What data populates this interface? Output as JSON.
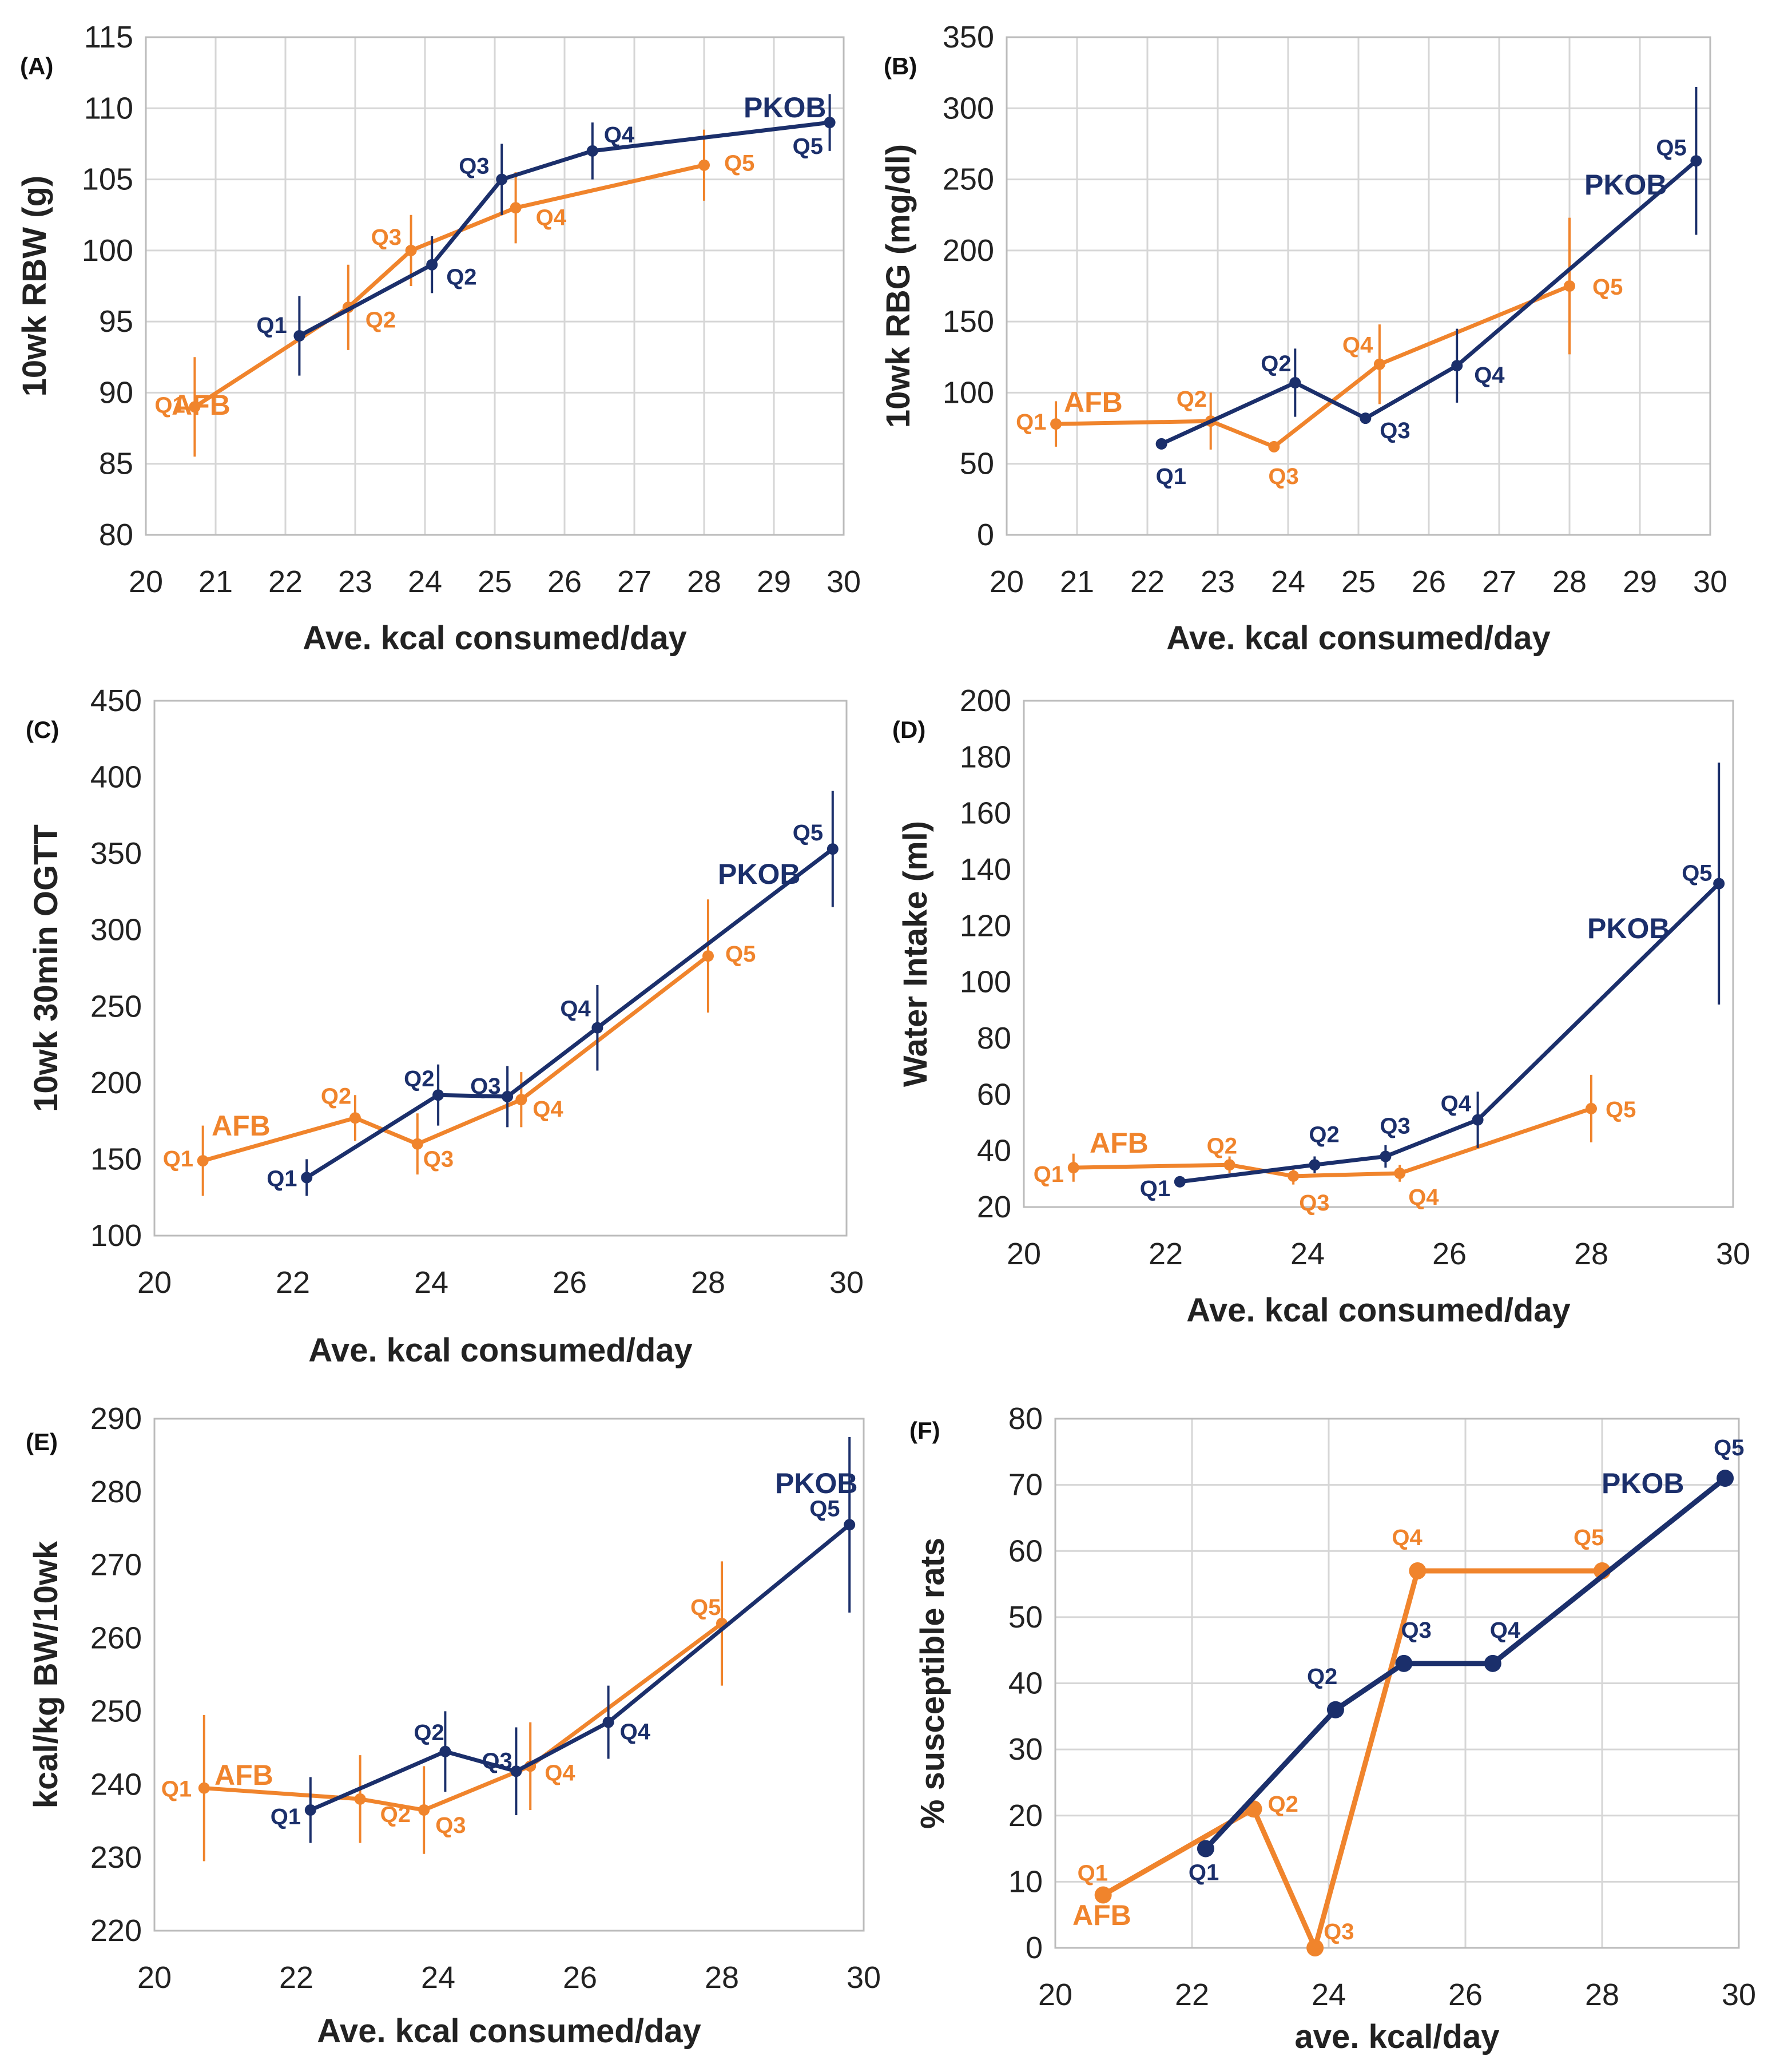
{
  "colors": {
    "afb": "#F0842C",
    "pkob": "#1B2F6B",
    "grid": "#D6D6D6",
    "axis": "#BBBBBB"
  },
  "chart_data": [
    {
      "id": "A",
      "type": "line",
      "panel_label": "(A)",
      "ylabel": "10wk  RBW (g)",
      "xlabel": "Ave. kcal consumed/day",
      "xlim": [
        20,
        30
      ],
      "ylim": [
        80,
        115
      ],
      "xticks": [
        "20",
        "21",
        "22",
        "23",
        "24",
        "25",
        "26",
        "27",
        "28",
        "29",
        "30"
      ],
      "yticks": [
        "80",
        "85",
        "90",
        "95",
        "100",
        "105",
        "110",
        "115"
      ],
      "grid": true,
      "series": [
        {
          "name": "AFB",
          "color": "afb",
          "x": [
            20.7,
            22.9,
            23.8,
            25.3,
            28.0
          ],
          "y": [
            89,
            96,
            100,
            103,
            106
          ],
          "err": [
            3.5,
            3.0,
            2.5,
            2.5,
            2.5
          ],
          "labels": [
            "Q1",
            "Q2",
            "Q3",
            "Q4",
            "Q5"
          ]
        },
        {
          "name": "PKOB",
          "color": "pkob",
          "x": [
            22.2,
            24.1,
            25.1,
            26.4,
            29.8
          ],
          "y": [
            94,
            99,
            105,
            107,
            109
          ],
          "err": [
            2.8,
            2.0,
            2.5,
            2.0,
            2.0
          ],
          "labels": [
            "Q1",
            "Q2",
            "Q3",
            "Q4",
            "Q5"
          ]
        }
      ]
    },
    {
      "id": "B",
      "type": "line",
      "panel_label": "(B)",
      "ylabel": "10wk RBG (mg/dl)",
      "xlabel": "Ave. kcal consumed/day",
      "xlim": [
        20,
        30
      ],
      "ylim": [
        0,
        350
      ],
      "xticks": [
        "20",
        "21",
        "22",
        "23",
        "24",
        "25",
        "26",
        "27",
        "28",
        "29",
        "30"
      ],
      "yticks": [
        "0",
        "50",
        "100",
        "150",
        "200",
        "250",
        "300",
        "350"
      ],
      "grid": true,
      "series": [
        {
          "name": "AFB",
          "color": "afb",
          "x": [
            20.7,
            22.9,
            23.8,
            25.3,
            28.0
          ],
          "y": [
            78,
            80,
            62,
            120,
            175
          ],
          "err": [
            16,
            20,
            0,
            28,
            48
          ],
          "labels": [
            "Q1",
            "Q2",
            "Q3",
            "Q4",
            "Q5"
          ]
        },
        {
          "name": "PKOB",
          "color": "pkob",
          "x": [
            22.2,
            24.1,
            25.1,
            26.4,
            29.8
          ],
          "y": [
            64,
            107,
            82,
            119,
            263
          ],
          "err": [
            0,
            24,
            0,
            26,
            52
          ],
          "labels": [
            "Q1",
            "Q2",
            "Q3",
            "Q4",
            "Q5"
          ]
        }
      ]
    },
    {
      "id": "C",
      "type": "line",
      "panel_label": "(C)",
      "ylabel": "10wk 30min OGTT",
      "xlabel": "Ave. kcal consumed/day",
      "xlim": [
        20,
        30
      ],
      "ylim": [
        100,
        450
      ],
      "xticks": [
        "20",
        "22",
        "24",
        "26",
        "28",
        "30"
      ],
      "yticks": [
        "100",
        "150",
        "200",
        "250",
        "300",
        "350",
        "400",
        "450"
      ],
      "grid": false,
      "series": [
        {
          "name": "AFB",
          "color": "afb",
          "x": [
            20.7,
            22.9,
            23.8,
            25.3,
            28.0
          ],
          "y": [
            149,
            177,
            160,
            189,
            283
          ],
          "err": [
            23,
            15,
            20,
            18,
            37
          ],
          "labels": [
            "Q1",
            "Q2",
            "Q3",
            "Q4",
            "Q5"
          ]
        },
        {
          "name": "PKOB",
          "color": "pkob",
          "x": [
            22.2,
            24.1,
            25.1,
            26.4,
            29.8
          ],
          "y": [
            138,
            192,
            191,
            236,
            353
          ],
          "err": [
            12,
            20,
            20,
            28,
            38
          ],
          "labels": [
            "Q1",
            "Q2",
            "Q3",
            "Q4",
            "Q5"
          ]
        }
      ]
    },
    {
      "id": "D",
      "type": "line",
      "panel_label": "(D)",
      "ylabel": "Water Intake (ml)",
      "xlabel": "Ave. kcal consumed/day",
      "xlim": [
        20,
        30
      ],
      "ylim": [
        20,
        200
      ],
      "xticks": [
        "20",
        "22",
        "24",
        "26",
        "28",
        "30"
      ],
      "yticks": [
        "20",
        "40",
        "60",
        "80",
        "100",
        "120",
        "140",
        "160",
        "180",
        "200"
      ],
      "grid": false,
      "series": [
        {
          "name": "AFB",
          "color": "afb",
          "x": [
            20.7,
            22.9,
            23.8,
            25.3,
            28.0
          ],
          "y": [
            34,
            35,
            31,
            32,
            55
          ],
          "err": [
            5,
            3,
            3,
            3,
            12
          ],
          "labels": [
            "Q1",
            "Q2",
            "Q3",
            "Q4",
            "Q5"
          ]
        },
        {
          "name": "PKOB",
          "color": "pkob",
          "x": [
            22.2,
            24.1,
            25.1,
            26.4,
            29.8
          ],
          "y": [
            29,
            35,
            38,
            51,
            135
          ],
          "err": [
            2,
            3,
            4,
            10,
            43
          ],
          "labels": [
            "Q1",
            "Q2",
            "Q3",
            "Q4",
            "Q5"
          ]
        }
      ]
    },
    {
      "id": "E",
      "type": "line",
      "panel_label": "(E)",
      "ylabel": "kcal/kg BW/10wk",
      "xlabel": "Ave. kcal consumed/day",
      "xlim": [
        20,
        30
      ],
      "ylim": [
        220,
        290
      ],
      "xticks": [
        "20",
        "22",
        "24",
        "26",
        "28",
        "30"
      ],
      "yticks": [
        "220",
        "230",
        "240",
        "250",
        "260",
        "270",
        "280",
        "290"
      ],
      "grid": false,
      "series": [
        {
          "name": "AFB",
          "color": "afb",
          "x": [
            20.7,
            22.9,
            23.8,
            25.3,
            28.0
          ],
          "y": [
            239.5,
            238,
            236.5,
            242.5,
            262
          ],
          "err": [
            10,
            6,
            6,
            6,
            8.5
          ],
          "labels": [
            "Q1",
            "Q2",
            "Q3",
            "Q4",
            "Q5"
          ]
        },
        {
          "name": "PKOB",
          "color": "pkob",
          "x": [
            22.2,
            24.1,
            25.1,
            26.4,
            29.8
          ],
          "y": [
            236.5,
            244.5,
            241.8,
            248.5,
            275.5
          ],
          "err": [
            4.5,
            5.5,
            6,
            5,
            12
          ],
          "labels": [
            "Q1",
            "Q2",
            "Q3",
            "Q4",
            "Q5"
          ]
        }
      ]
    },
    {
      "id": "F",
      "type": "line",
      "panel_label": "(F)",
      "ylabel": "% susceptible rats",
      "xlabel": "ave. kcal/day",
      "xlim": [
        20,
        30
      ],
      "ylim": [
        0,
        80
      ],
      "xticks": [
        "20",
        "22",
        "24",
        "26",
        "28",
        "30"
      ],
      "yticks": [
        "0",
        "10",
        "20",
        "30",
        "40",
        "50",
        "60",
        "70",
        "80"
      ],
      "grid": true,
      "series": [
        {
          "name": "AFB",
          "color": "afb",
          "x": [
            20.7,
            22.9,
            23.8,
            25.3,
            28.0
          ],
          "y": [
            8,
            21,
            0,
            57,
            57
          ],
          "labels": [
            "Q1",
            "Q2",
            "Q3",
            "Q4",
            "Q5"
          ]
        },
        {
          "name": "PKOB",
          "color": "pkob",
          "x": [
            22.2,
            24.1,
            25.1,
            26.4,
            29.8
          ],
          "y": [
            15,
            36,
            43,
            43,
            71
          ],
          "labels": [
            "Q1",
            "Q2",
            "Q3",
            "Q4",
            "Q5"
          ]
        }
      ]
    }
  ]
}
